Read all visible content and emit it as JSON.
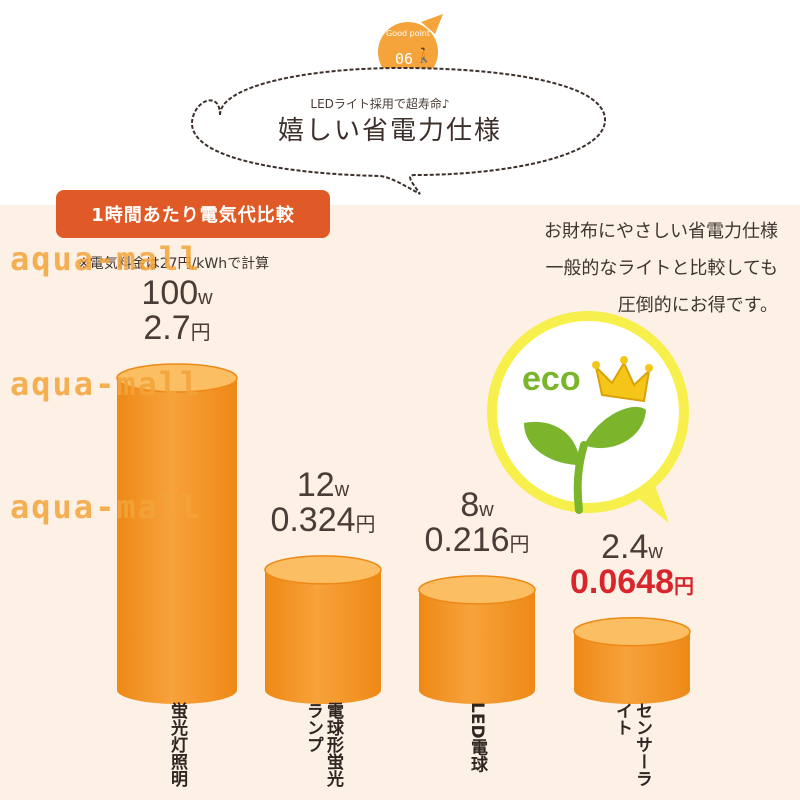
{
  "badge": {
    "top": "Good point",
    "num": "06",
    "figure": "🚶"
  },
  "header": {
    "subtitle": "LEDライト採用で超寿命♪",
    "title": "嬉しい省電力仕様"
  },
  "label": {
    "tag": "1時間あたり電気代比較",
    "note": "※電気料金は27円/kWhで計算"
  },
  "description": {
    "lines": [
      "お財布にやさしい省電力仕様",
      "一般的なライトと比較しても",
      "圧倒的にお得です。"
    ]
  },
  "watermark": "aqua-mall",
  "eco": {
    "label": "eco"
  },
  "colors": {
    "bar": "#f7a23b",
    "bar_dark": "#ee8916",
    "bar_top": "#fbbe62",
    "accent": "#e05a27",
    "highlight": "#d8262d",
    "eco_green": "#7ab52c"
  },
  "chart_data": {
    "type": "bar",
    "categories": [
      "蛍光灯照明",
      "電球形蛍光ランプ",
      "LED電球",
      "センサーライト"
    ],
    "series": [
      {
        "name": "W",
        "values": [
          100,
          12,
          8,
          2.4
        ]
      },
      {
        "name": "円",
        "values": [
          2.7,
          0.324,
          0.216,
          0.0648
        ]
      }
    ],
    "watt_labels": [
      "100",
      "12",
      "8",
      "2.4"
    ],
    "watt_unit": "w",
    "cost_labels": [
      "2.7",
      "0.324",
      "0.216",
      "0.0648"
    ],
    "cost_unit": "円",
    "category_lines": [
      [
        "蛍光灯照明"
      ],
      [
        "電球形",
        "蛍光ランプ"
      ],
      [
        "LED電球"
      ],
      [
        "センサー",
        "ライト"
      ]
    ],
    "highlight_index": 3,
    "title": "1時間あたり電気代比較"
  }
}
